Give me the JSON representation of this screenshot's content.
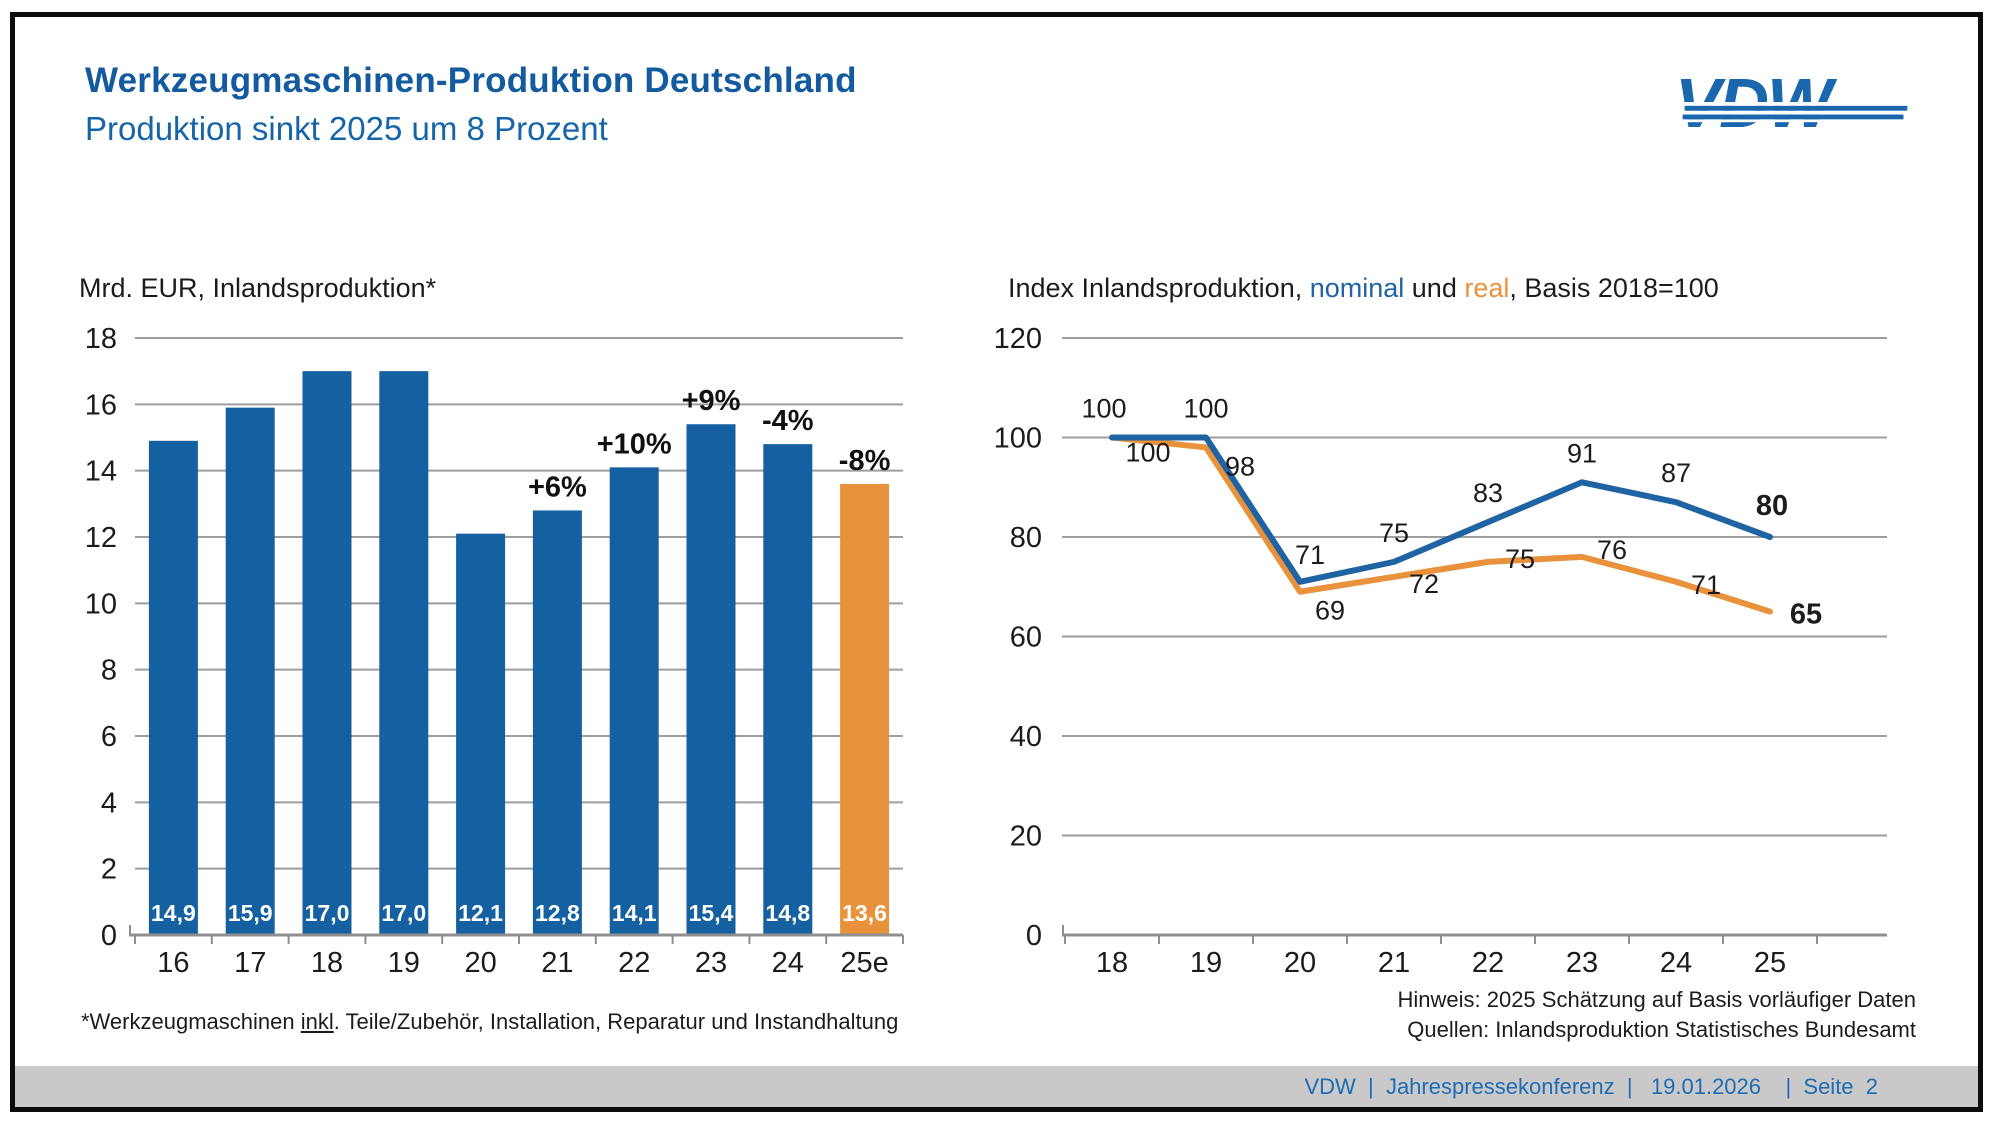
{
  "header": {
    "title": "Werkzeugmaschinen-Produktion Deutschland",
    "subtitle": "Produktion sinkt 2025 um 8 Prozent"
  },
  "logo": {
    "text": "VDW"
  },
  "colors": {
    "title_blue": "#135A9E",
    "subtitle_blue": "#1565A8",
    "bar_blue": "#1560A1",
    "accent_orange": "#E8923C",
    "line_blue": "#1F63A3",
    "grid_gray": "#9E9E9E",
    "axis_gray": "#8F8F8F",
    "footer_bg": "#C9C9C9",
    "footer_text": "#1E6CB5",
    "logo_blue": "#1A67AE"
  },
  "chart_data": [
    {
      "id": "production-bars",
      "type": "bar",
      "title": "Mrd. EUR, Inlandsproduktion*",
      "categories": [
        "16",
        "17",
        "18",
        "19",
        "20",
        "21",
        "22",
        "23",
        "24",
        "25e"
      ],
      "values": [
        14.9,
        15.9,
        17.0,
        17.0,
        12.1,
        12.8,
        14.1,
        15.4,
        14.8,
        13.6
      ],
      "bar_labels": [
        "14,9",
        "15,9",
        "17,0",
        "17,0",
        "12,1",
        "12,8",
        "14,1",
        "15,4",
        "14,8",
        "13,6"
      ],
      "pct_labels": [
        null,
        null,
        null,
        null,
        null,
        "+6%",
        "+10%",
        "+9%",
        "-4%",
        "-8%"
      ],
      "highlight_index": 9,
      "ylim": [
        0,
        18
      ],
      "ytick_step": 2,
      "grid": true
    },
    {
      "id": "index-lines",
      "type": "line",
      "title_parts": {
        "prefix": "Index Inlandsproduktion, ",
        "nominal": "nominal",
        "mid": " und ",
        "real": "real",
        "suffix": ", Basis 2018=100"
      },
      "categories": [
        "18",
        "19",
        "20",
        "21",
        "22",
        "23",
        "24",
        "25"
      ],
      "series": [
        {
          "name": "nominal",
          "color": "#1F63A3",
          "values": [
            100,
            100,
            71,
            75,
            83,
            91,
            87,
            80
          ]
        },
        {
          "name": "real",
          "color": "#E8923C",
          "values": [
            100,
            98,
            69,
            72,
            75,
            76,
            71,
            65
          ]
        }
      ],
      "ylim": [
        0,
        120
      ],
      "ytick_step": 20,
      "grid": true,
      "legend": "inline-in-title"
    }
  ],
  "footnotes": {
    "left_pre": "*Werkzeugmaschinen ",
    "left_underlined": "inkl",
    "left_post": ". Teile/Zubehör, Installation, Reparatur und Instandhaltung",
    "right_line1": "Hinweis: 2025 Schätzung auf Basis vorläufiger Daten",
    "right_line2": "Quellen: Inlandsproduktion Statistisches Bundesamt"
  },
  "footer": {
    "text": "VDW  |  Jahrespressekonferenz  |   19.01.2026    |  Seite  2"
  }
}
